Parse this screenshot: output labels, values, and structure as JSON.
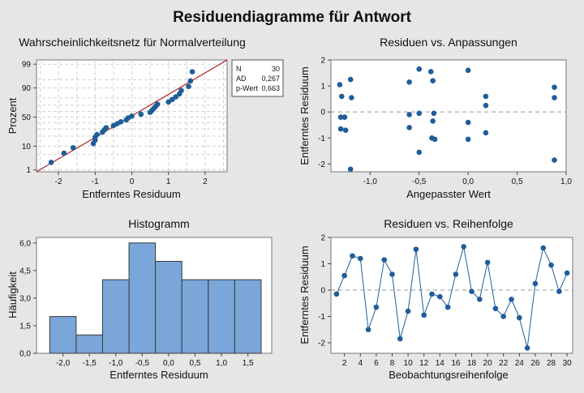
{
  "main_title": "Residuendiagramme für Antwort",
  "colors": {
    "background": "#e6e6e6",
    "plot_bg": "#ffffff",
    "point": "#1f5d99",
    "bar_fill": "#7aa6d9",
    "bar_stroke": "#3a3a3a",
    "fit_line": "#b22222",
    "zero_line": "#999999",
    "grid": "#d0d0d0"
  },
  "chart_data": [
    {
      "id": "normal",
      "type": "scatter",
      "title": "Wahrscheinlichkeitsnetz für Normalverteilung",
      "xlabel": "Entferntes Residuum",
      "ylabel": "Prozent",
      "xlim": [
        -2.6,
        2.6
      ],
      "xticks": [
        -2,
        -1,
        0,
        1,
        2
      ],
      "yticks": [
        1,
        10,
        50,
        90,
        99
      ],
      "grid": true,
      "scale": "normal-probability",
      "stats": [
        {
          "label": "N",
          "value": "30"
        },
        {
          "label": "AD",
          "value": "0,267"
        },
        {
          "label": "p-Wert",
          "value": "0,663"
        }
      ],
      "x": [
        -2.2,
        -1.85,
        -1.6,
        -1.05,
        -1.0,
        -1.0,
        -0.95,
        -0.8,
        -0.75,
        -0.7,
        -0.5,
        -0.4,
        -0.3,
        -0.15,
        -0.1,
        0.0,
        0.25,
        0.5,
        0.55,
        0.6,
        0.65,
        0.7,
        1.0,
        1.1,
        1.2,
        1.3,
        1.35,
        1.55,
        1.6,
        1.65
      ],
      "fit": [
        {
          "x": -2.6,
          "p": 0.8
        },
        {
          "x": 2.6,
          "p": 99.4
        }
      ]
    },
    {
      "id": "resfit",
      "type": "scatter",
      "title": "Residuen vs. Anpassungen",
      "xlabel": "Angepasster Wert",
      "ylabel": "Entferntes Residuum",
      "xlim": [
        -1.4,
        1.0
      ],
      "ylim": [
        -2.3,
        2.0
      ],
      "xticks": [
        -1.0,
        -0.5,
        0.0,
        0.5,
        1.0
      ],
      "xtick_labels": [
        "-1,0",
        "-0,5",
        "0,0",
        "0,5",
        "1,0"
      ],
      "yticks": [
        -2,
        -1,
        0,
        1,
        2
      ],
      "reference_line": 0,
      "points": [
        [
          -1.31,
          1.05
        ],
        [
          -1.3,
          -0.2
        ],
        [
          -1.29,
          0.6
        ],
        [
          -1.3,
          -0.65
        ],
        [
          -1.26,
          -0.2
        ],
        [
          -1.25,
          -0.7
        ],
        [
          -1.2,
          1.25
        ],
        [
          -1.19,
          0.55
        ],
        [
          -1.2,
          -2.2
        ],
        [
          -0.6,
          1.15
        ],
        [
          -0.6,
          -0.1
        ],
        [
          -0.6,
          -0.6
        ],
        [
          -0.5,
          1.65
        ],
        [
          -0.5,
          -0.05
        ],
        [
          -0.5,
          -1.55
        ],
        [
          -0.38,
          1.55
        ],
        [
          -0.36,
          1.2
        ],
        [
          -0.36,
          -0.35
        ],
        [
          -0.35,
          -0.05
        ],
        [
          -0.37,
          -1.0
        ],
        [
          -0.34,
          -1.05
        ],
        [
          0.0,
          1.6
        ],
        [
          0.0,
          -0.4
        ],
        [
          0.0,
          -1.05
        ],
        [
          0.18,
          0.6
        ],
        [
          0.18,
          0.25
        ],
        [
          0.18,
          -0.8
        ],
        [
          0.88,
          0.95
        ],
        [
          0.88,
          0.55
        ],
        [
          0.88,
          -1.85
        ]
      ]
    },
    {
      "id": "histogram",
      "type": "bar",
      "title": "Histogramm",
      "xlabel": "Entferntes Residuum",
      "ylabel": "Häufigkeit",
      "bins_edges": [
        -2.25,
        -1.75,
        -1.25,
        -0.75,
        -0.25,
        0.25,
        0.75,
        1.25,
        1.75
      ],
      "values": [
        2,
        1,
        4,
        6,
        5,
        4,
        4,
        4
      ],
      "xlim": [
        -2.5,
        1.95
      ],
      "ylim": [
        0,
        6.3
      ],
      "xticks": [
        -2.0,
        -1.5,
        -1.0,
        -0.5,
        0.0,
        0.5,
        1.0,
        1.5
      ],
      "xtick_labels": [
        "-2,0",
        "-1,5",
        "-1,0",
        "-0,5",
        "0,0",
        "0,5",
        "1,0",
        "1,5"
      ],
      "yticks": [
        0,
        1.5,
        3.0,
        4.5,
        6.0
      ],
      "ytick_labels": [
        "0,0",
        "1,5",
        "3,0",
        "4,5",
        "6,0"
      ]
    },
    {
      "id": "order",
      "type": "line",
      "title": "Residuen vs. Reihenfolge",
      "xlabel": "Beobachtungsreihenfolge",
      "ylabel": "Entferntes Residuum",
      "xlim": [
        0.3,
        30.7
      ],
      "ylim": [
        -2.4,
        2.0
      ],
      "xticks": [
        2,
        4,
        6,
        8,
        10,
        12,
        14,
        16,
        18,
        20,
        22,
        24,
        26,
        28,
        30
      ],
      "yticks": [
        -2,
        -1,
        0,
        1,
        2
      ],
      "reference_line": 0,
      "values": [
        -0.15,
        0.55,
        1.3,
        1.2,
        -1.5,
        -0.65,
        1.15,
        0.6,
        -1.85,
        -0.8,
        1.55,
        -0.95,
        -0.15,
        -0.25,
        -0.65,
        0.6,
        1.65,
        -0.05,
        -0.35,
        1.05,
        -0.7,
        -1.0,
        -0.35,
        -1.05,
        -2.2,
        0.25,
        1.6,
        0.95,
        -0.05,
        0.65
      ]
    }
  ]
}
